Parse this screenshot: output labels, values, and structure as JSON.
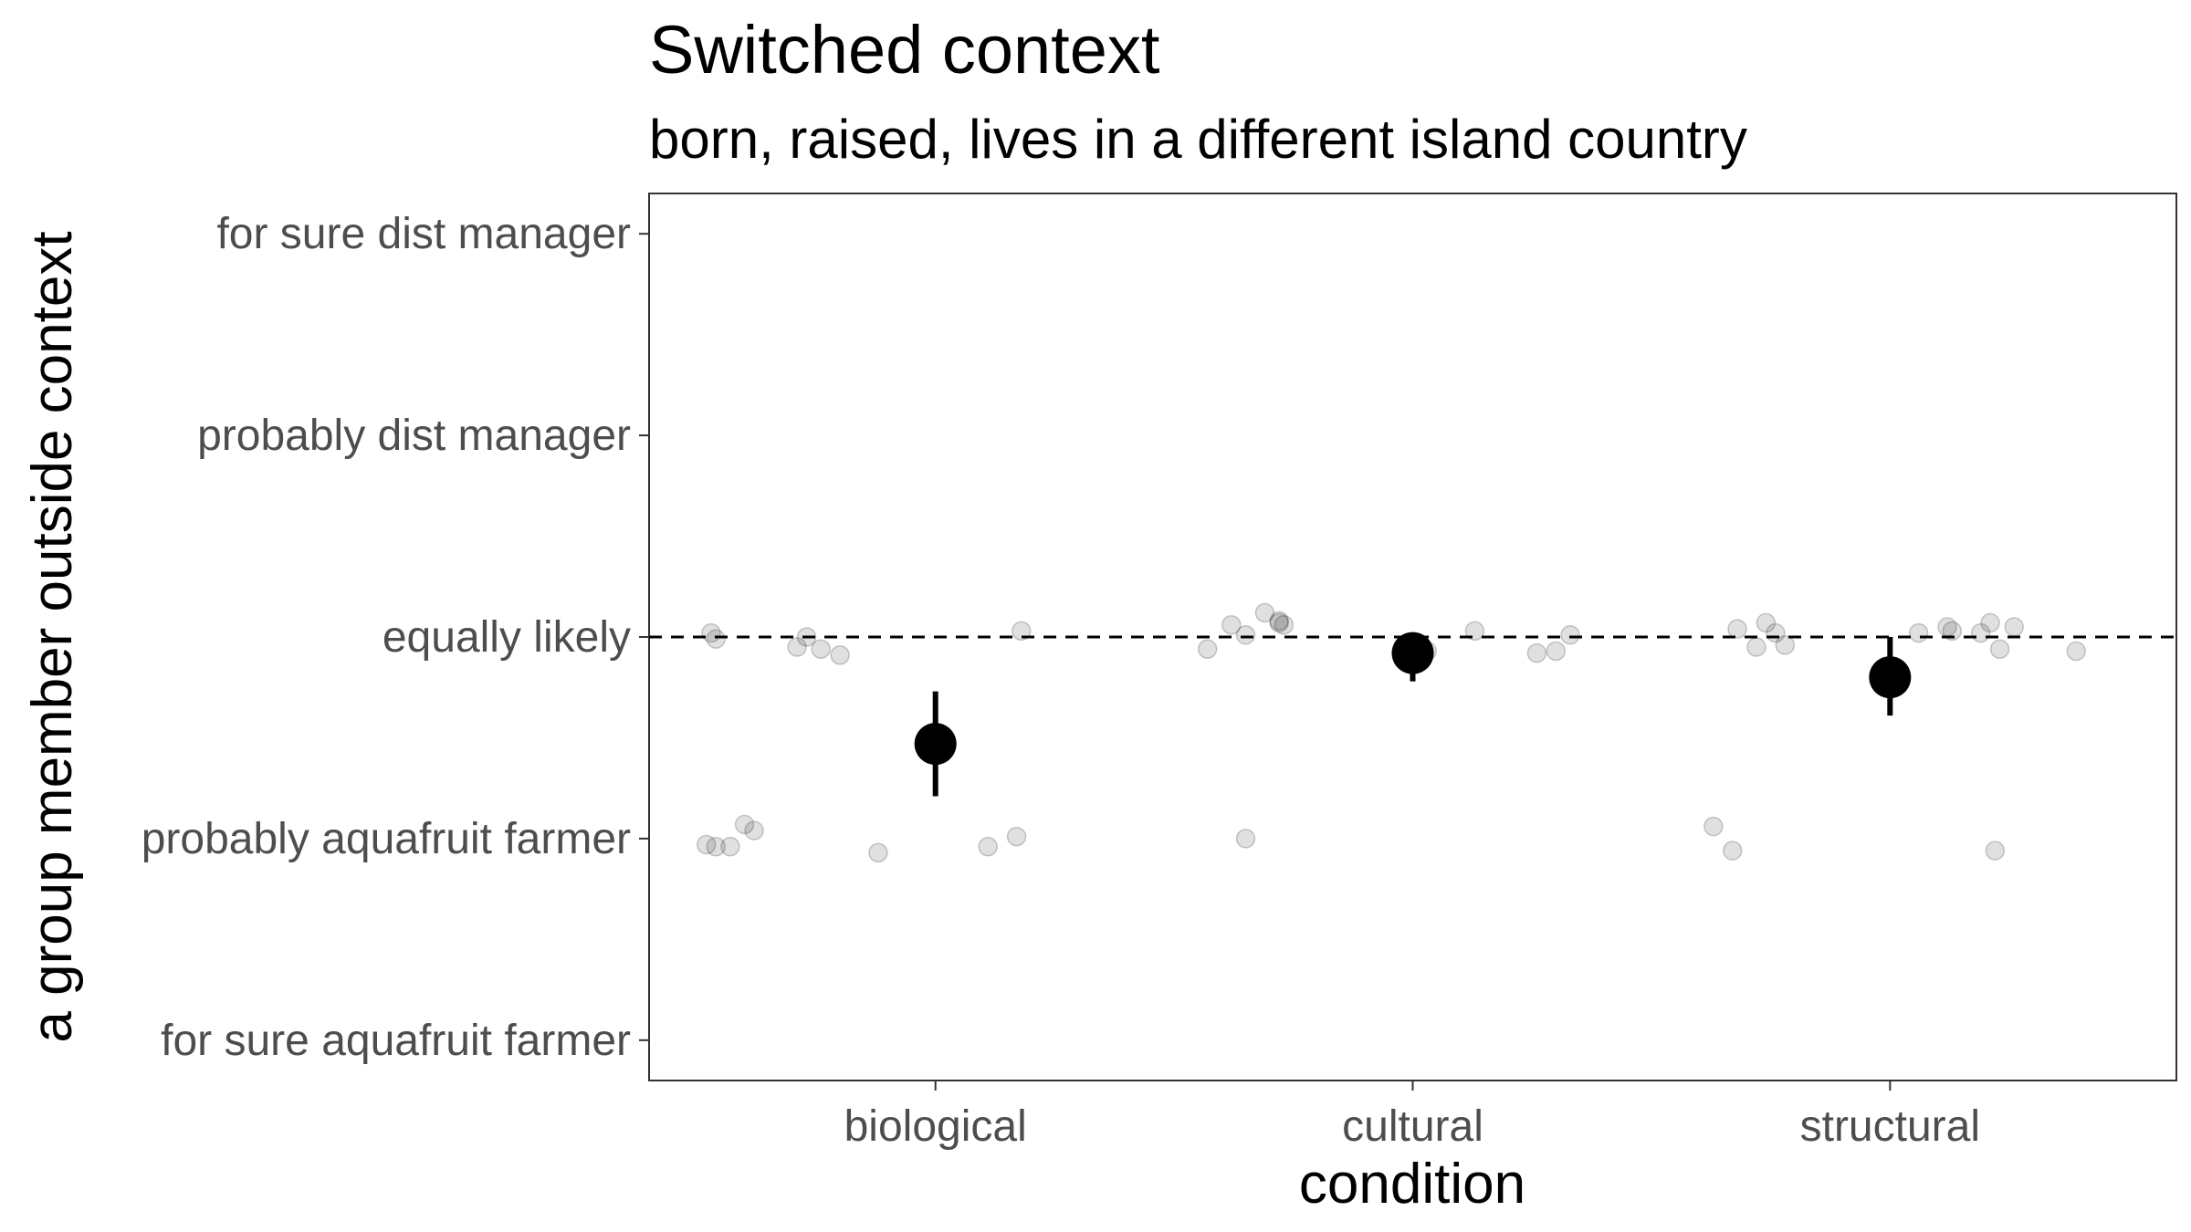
{
  "chart_data": {
    "type": "scatter",
    "title": "Switched context",
    "subtitle": "born, raised, lives in a different island country",
    "xlabel": "condition",
    "ylabel": "a group member outside context",
    "categories": [
      "biological",
      "cultural",
      "structural"
    ],
    "y_ticks": [
      {
        "value": -2,
        "label": "for sure aquafruit farmer"
      },
      {
        "value": -1,
        "label": "probably aquafruit farmer"
      },
      {
        "value": 0,
        "label": "equally likely"
      },
      {
        "value": 1,
        "label": "probably dist manager"
      },
      {
        "value": 2,
        "label": "for sure dist manager"
      }
    ],
    "ylim": [
      -2.2,
      2.2
    ],
    "reference_line": {
      "y": 0,
      "style": "dashed"
    },
    "grid": false,
    "summary": {
      "means": [
        -0.53,
        -0.08,
        -0.2
      ],
      "ci_low": [
        -0.79,
        -0.22,
        -0.39
      ],
      "ci_high": [
        -0.27,
        0.0,
        0.0
      ]
    },
    "raw_points": [
      {
        "category": "biological",
        "jitter": -0.47,
        "y": 0.02
      },
      {
        "category": "biological",
        "jitter": -0.46,
        "y": -0.01
      },
      {
        "category": "biological",
        "jitter": -0.29,
        "y": -0.05
      },
      {
        "category": "biological",
        "jitter": -0.27,
        "y": 0.0
      },
      {
        "category": "biological",
        "jitter": -0.24,
        "y": -0.06
      },
      {
        "category": "biological",
        "jitter": -0.2,
        "y": -0.09
      },
      {
        "category": "biological",
        "jitter": 0.18,
        "y": 0.03
      },
      {
        "category": "biological",
        "jitter": -0.48,
        "y": -1.03
      },
      {
        "category": "biological",
        "jitter": -0.46,
        "y": -1.04
      },
      {
        "category": "biological",
        "jitter": -0.43,
        "y": -1.04
      },
      {
        "category": "biological",
        "jitter": -0.4,
        "y": -0.93
      },
      {
        "category": "biological",
        "jitter": -0.38,
        "y": -0.96
      },
      {
        "category": "biological",
        "jitter": -0.12,
        "y": -1.07
      },
      {
        "category": "biological",
        "jitter": 0.11,
        "y": -1.04
      },
      {
        "category": "biological",
        "jitter": 0.17,
        "y": -0.99
      },
      {
        "category": "cultural",
        "jitter": -0.43,
        "y": -0.06
      },
      {
        "category": "cultural",
        "jitter": -0.38,
        "y": 0.06
      },
      {
        "category": "cultural",
        "jitter": -0.35,
        "y": 0.01
      },
      {
        "category": "cultural",
        "jitter": -0.28,
        "y": 0.07
      },
      {
        "category": "cultural",
        "jitter": -0.28,
        "y": 0.08
      },
      {
        "category": "cultural",
        "jitter": -0.27,
        "y": 0.06
      },
      {
        "category": "cultural",
        "jitter": 0.03,
        "y": -0.07
      },
      {
        "category": "cultural",
        "jitter": 0.13,
        "y": 0.03
      },
      {
        "category": "cultural",
        "jitter": 0.26,
        "y": -0.08
      },
      {
        "category": "cultural",
        "jitter": 0.3,
        "y": -0.07
      },
      {
        "category": "cultural",
        "jitter": 0.33,
        "y": 0.01
      },
      {
        "category": "cultural",
        "jitter": -0.31,
        "y": 0.12
      },
      {
        "category": "cultural",
        "jitter": -0.35,
        "y": -1.0
      },
      {
        "category": "structural",
        "jitter": -0.32,
        "y": 0.04
      },
      {
        "category": "structural",
        "jitter": -0.28,
        "y": -0.05
      },
      {
        "category": "structural",
        "jitter": -0.26,
        "y": 0.07
      },
      {
        "category": "structural",
        "jitter": -0.24,
        "y": 0.02
      },
      {
        "category": "structural",
        "jitter": -0.22,
        "y": -0.04
      },
      {
        "category": "structural",
        "jitter": 0.06,
        "y": 0.02
      },
      {
        "category": "structural",
        "jitter": 0.12,
        "y": 0.05
      },
      {
        "category": "structural",
        "jitter": 0.13,
        "y": 0.03
      },
      {
        "category": "structural",
        "jitter": 0.21,
        "y": 0.07
      },
      {
        "category": "structural",
        "jitter": 0.19,
        "y": 0.02
      },
      {
        "category": "structural",
        "jitter": 0.26,
        "y": 0.05
      },
      {
        "category": "structural",
        "jitter": 0.39,
        "y": -0.07
      },
      {
        "category": "structural",
        "jitter": 0.23,
        "y": -0.06
      },
      {
        "category": "structural",
        "jitter": -0.37,
        "y": -0.94
      },
      {
        "category": "structural",
        "jitter": -0.33,
        "y": -1.06
      },
      {
        "category": "structural",
        "jitter": 0.22,
        "y": -1.06
      }
    ]
  }
}
